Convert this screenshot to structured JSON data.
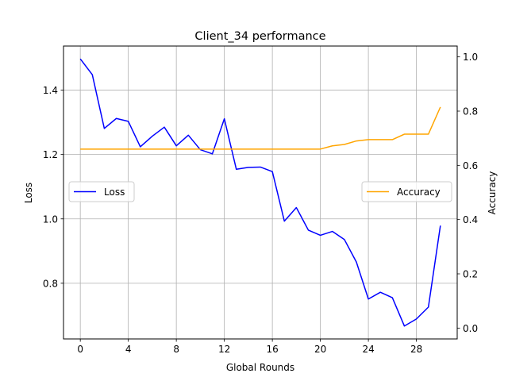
{
  "chart_data": {
    "type": "line",
    "title": "Client_34 performance",
    "xlabel": "Global Rounds",
    "ylabel_left": "Loss",
    "ylabel_right": "Accuracy",
    "grid": true,
    "xlim": [
      -1.4,
      31.4
    ],
    "ylim_left": [
      0.627,
      1.537
    ],
    "ylim_right": [
      -0.04,
      1.04
    ],
    "x_ticks": [
      0,
      4,
      8,
      12,
      16,
      20,
      24,
      28
    ],
    "y_ticks_left": [
      0.8,
      1.0,
      1.2,
      1.4
    ],
    "y_ticks_right": [
      0.0,
      0.2,
      0.4,
      0.6,
      0.8,
      1.0
    ],
    "x": [
      0,
      1,
      2,
      3,
      4,
      5,
      6,
      7,
      8,
      9,
      10,
      11,
      12,
      13,
      14,
      15,
      16,
      17,
      18,
      19,
      20,
      21,
      22,
      23,
      24,
      25,
      26,
      27,
      28,
      29,
      30
    ],
    "series": [
      {
        "name": "Loss",
        "axis": "left",
        "color": "#0000ff",
        "legend_position": "center-left",
        "values": [
          1.497,
          1.448,
          1.281,
          1.312,
          1.303,
          1.224,
          1.257,
          1.285,
          1.227,
          1.26,
          1.215,
          1.202,
          1.311,
          1.154,
          1.16,
          1.161,
          1.147,
          0.993,
          1.035,
          0.965,
          0.949,
          0.961,
          0.936,
          0.866,
          0.751,
          0.772,
          0.755,
          0.667,
          0.689,
          0.726,
          0.979
        ]
      },
      {
        "name": "Accuracy",
        "axis": "right",
        "color": "#ffa500",
        "legend_position": "center-right",
        "values": [
          0.66,
          0.66,
          0.66,
          0.66,
          0.66,
          0.66,
          0.66,
          0.66,
          0.66,
          0.66,
          0.66,
          0.66,
          0.66,
          0.66,
          0.66,
          0.66,
          0.66,
          0.66,
          0.66,
          0.66,
          0.66,
          0.672,
          0.677,
          0.69,
          0.695,
          0.695,
          0.695,
          0.715,
          0.715,
          0.715,
          0.815
        ]
      }
    ]
  }
}
